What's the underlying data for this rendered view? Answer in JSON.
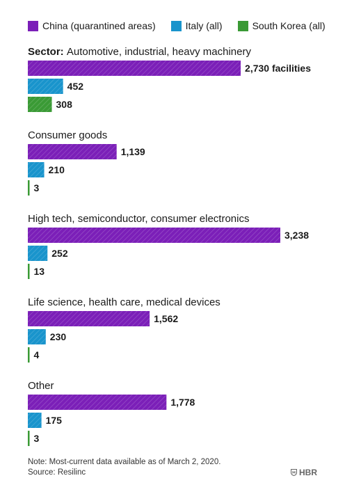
{
  "legend": {
    "items": [
      {
        "label": "China (quarantined areas)",
        "color": "#7b1fb8"
      },
      {
        "label": "Italy (all)",
        "color": "#1994cc"
      },
      {
        "label": "South Korea (all)",
        "color": "#3a9a35"
      }
    ]
  },
  "chart_data": {
    "type": "bar",
    "orientation": "horizontal",
    "grouped": true,
    "series": [
      {
        "name": "China (quarantined areas)",
        "color": "#7b1fb8",
        "values": [
          2730,
          1139,
          3238,
          1562,
          1778
        ]
      },
      {
        "name": "Italy (all)",
        "color": "#1994cc",
        "values": [
          452,
          210,
          252,
          230,
          175
        ]
      },
      {
        "name": "South Korea (all)",
        "color": "#3a9a35",
        "values": [
          308,
          3,
          13,
          4,
          3
        ]
      }
    ],
    "categories": [
      {
        "prefix": "Sector:",
        "label": "Automotive, industrial, heavy machinery"
      },
      {
        "prefix": "",
        "label": "Consumer goods"
      },
      {
        "prefix": "",
        "label": "High tech, semiconductor, consumer electronics"
      },
      {
        "prefix": "",
        "label": "Life science, health care, medical devices"
      },
      {
        "prefix": "",
        "label": "Other"
      }
    ],
    "value_labels": [
      [
        "2,730 facilities",
        "452",
        "308"
      ],
      [
        "1,139",
        "210",
        "3"
      ],
      [
        "3,238",
        "252",
        "13"
      ],
      [
        "1,562",
        "230",
        "4"
      ],
      [
        "1,778",
        "175",
        "3"
      ]
    ],
    "xlim": [
      0,
      3238
    ],
    "grid": false,
    "legend_position": "top-left"
  },
  "footer": {
    "note": "Note: Most-current data available as of March 2, 2020.",
    "source": "Source: Resilinc"
  },
  "brand": {
    "text": "HBR",
    "icon": "shield-icon"
  }
}
